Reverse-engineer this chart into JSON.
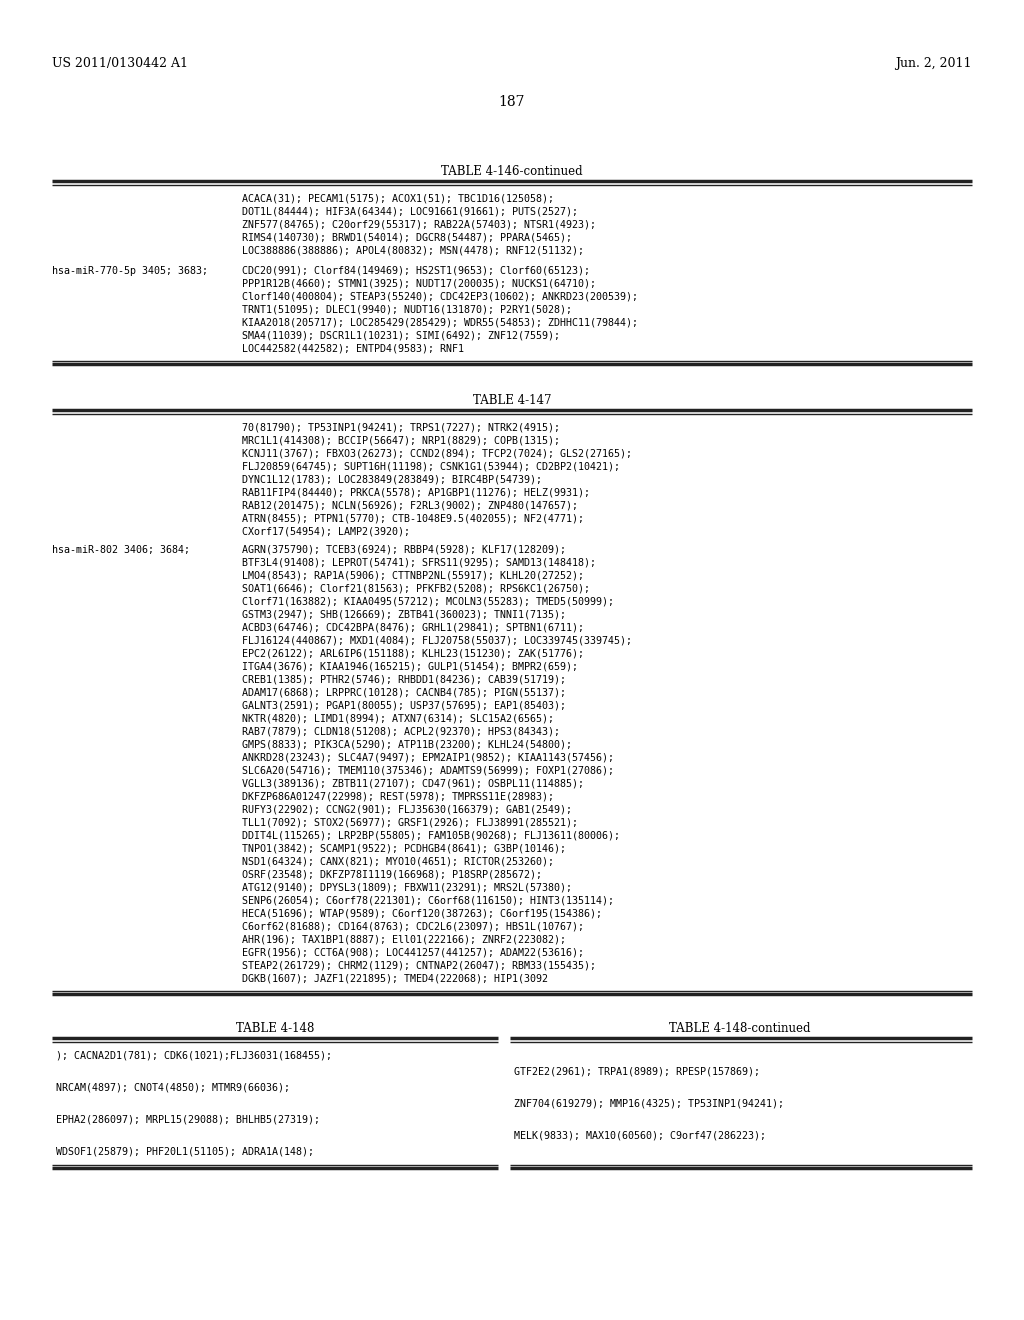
{
  "bg_color": "#ffffff",
  "header_left": "US 2011/0130442 A1",
  "header_right": "Jun. 2, 2011",
  "page_number": "187",
  "table146_title": "TABLE 4-146-continued",
  "table147_title": "TABLE 4-147",
  "table148_title_left": "TABLE 4-148",
  "table148_title_right": "TABLE 4-148-continued",
  "row146_0_content": "ACACA(31); PECAM1(5175); ACOX1(51); TBC1D16(125058);\nDOT1L(84444); HIF3A(64344); LOC91661(91661); PUTS(2527);\nZNF577(84765); C20orf29(55317); RAB22A(57403); NTSR1(4923);\nRIMS4(140730); BRWD1(54014); DGCR8(54487); PPARA(5465);\nLOC388886(388886); APOL4(80832); MSN(4478); RNF12(51132);",
  "row146_1_label": "hsa-miR-770-5p 3405; 3683;",
  "row146_1_content": "CDC20(991); Clorf84(149469); HS2ST1(9653); Clorf60(65123);\nPPP1R12B(4660); STMN1(3925); NUDT17(200035); NUCKS1(64710);\nClorf140(400804); STEAP3(55240); CDC42EP3(10602); ANKRD23(200539);\nTRNT1(51095); DLEC1(9940); NUDT16(131870); P2RY1(5028);\nKIAA2018(205717); LOC285429(285429); WDR55(54853); ZDHHC11(79844);\nSMA4(11039); DSCR1L1(10231); SIMI(6492); ZNF12(7559);\nLOC442582(442582); ENTPD4(9583); RNF1",
  "row147_0_content": "70(81790); TP53INP1(94241); TRPS1(7227); NTRK2(4915);\nMRC1L1(414308); BCCIP(56647); NRP1(8829); COPB(1315);\nKCNJ11(3767); FBXO3(26273); CCND2(894); TFCP2(7024); GLS2(27165);\nFLJ20859(64745); SUPT16H(11198); CSNK1G1(53944); CD2BP2(10421);\nDYNC1L12(1783); LOC283849(283849); BIRC4BP(54739);\nRAB11FIP4(84440); PRKCA(5578); AP1GBP1(11276); HELZ(9931);\nRAB12(201475); NCLN(56926); F2RL3(9002); ZNP480(147657);\nATRN(8455); PTPN1(5770); CTB-1048E9.5(402055); NF2(4771);\nCXorf17(54954); LAMP2(3920);",
  "row147_1_label": "hsa-miR-802 3406; 3684;",
  "row147_1_content": "AGRN(375790); TCEB3(6924); RBBP4(5928); KLF17(128209);\nBTF3L4(91408); LEPROT(54741); SFRS11(9295); SAMD13(148418);\nLMO4(8543); RAP1A(5906); CTTNBP2NL(55917); KLHL20(27252);\nSOAT1(6646); Clorf21(81563); PFKFB2(5208); RPS6KC1(26750);\nClorf71(163882); KIAA0495(57212); MCOLN3(55283); TMED5(50999);\nGSTM3(2947); SHB(126669); ZBTB41(360023); TNNI1(7135);\nACBD3(64746); CDC42BPA(8476); GRHL1(29841); SPTBN1(6711);\nFLJ16124(440867); MXD1(4084); FLJ20758(55037); LOC339745(339745);\nEPC2(26122); ARL6IP6(151188); KLHL23(151230); ZAK(51776);\nITGA4(3676); KIAA1946(165215); GULP1(51454); BMPR2(659);\nCREB1(1385); PTHR2(5746); RHBDD1(84236); CAB39(51719);\nADAM17(6868); LRPPRC(10128); CACNB4(785); PIGN(55137);\nGALNT3(2591); PGAP1(80055); USP37(57695); EAP1(85403);\nNKTR(4820); LIMD1(8994); ATXN7(6314); SLC15A2(6565);\nRAB7(7879); CLDN18(51208); ACPL2(92370); HPS3(84343);\nGMPS(8833); PIK3CA(5290); ATP11B(23200); KLHL24(54800);\nANKRD28(23243); SLC4A7(9497); EPM2AIP1(9852); KIAA1143(57456);\nSLC6A20(54716); TMEM110(375346); ADAMTS9(56999); FOXP1(27086);\nVGLL3(389136); ZBTB11(27107); CD47(961); OSBPL11(114885);\nDKFZP686A01247(22998); REST(5978); TMPRSS11E(28983);\nRUFY3(22902); CCNG2(901); FLJ35630(166379); GAB1(2549);\nTLL1(7092); STOX2(56977); GRSF1(2926); FLJ38991(285521);\nDDIT4L(115265); LRP2BP(55805); FAM105B(90268); FLJ13611(80006);\nTNPO1(3842); SCAMP1(9522); PCDHGB4(8641); G3BP(10146);\nNSD1(64324); CANX(821); MYO10(4651); RICTOR(253260);\nOSRF(23548); DKFZP78I1119(166968); P18SRP(285672);\nATG12(9140); DPYSL3(1809); FBXW11(23291); MRS2L(57380);\nSENP6(26054); C6orf78(221301); C6orf68(116150); HINT3(135114);\nHECA(51696); WTAP(9589); C6orf120(387263); C6orf195(154386);\nC6orf62(81688); CD164(8763); CDC2L6(23097); HBS1L(10767);\nAHR(196); TAX1BP1(8887); Ell01(222166); ZNRF2(223082);\nEGFR(1956); CCT6A(908); LOC441257(441257); ADAM22(53616);\nSTEAP2(261729); CHRM2(1129); CNTNAP2(26047); RBM33(155435);\nDGKB(1607); JAZF1(221895); TMED4(222068); HIP1(3092",
  "table148_left": [
    "); CACNA2D1(781); CDK6(1021);FLJ36031(168455);",
    "",
    "NRCAM(4897); CNOT4(4850); MTMR9(66036);",
    "",
    "EPHA2(286097); MRPL15(29088); BHLHB5(27319);",
    "",
    "WDSOF1(25879); PHF20L1(51105); ADRA1A(148);"
  ],
  "table148_right": [
    "",
    "GTF2E2(2961); TRPA1(8989); RPESP(157869);",
    "",
    "ZNF704(619279); MMP16(4325); TP53INP1(94241);",
    "",
    "MELK(9833); MAX10(60560); C9orf47(286223);",
    ""
  ]
}
